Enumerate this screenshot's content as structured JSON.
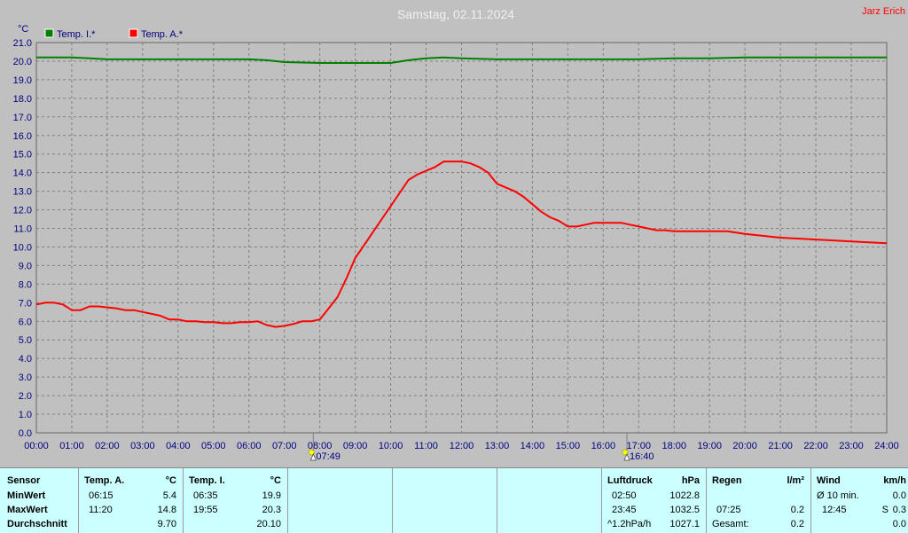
{
  "header": {
    "title": "Samstag, 02.11.2024",
    "author": "Jarz Erich",
    "y_unit": "°C"
  },
  "legend": [
    {
      "label": "Temp. I.*",
      "color": "#008000"
    },
    {
      "label": "Temp. A.*",
      "color": "#ff0000"
    }
  ],
  "sun_markers": [
    {
      "label": "07:49",
      "time": 7.817
    },
    {
      "label": "16:40",
      "time": 16.667
    }
  ],
  "chart_data": {
    "type": "line",
    "title": "Samstag, 02.11.2024",
    "ylabel": "°C",
    "ylim": [
      0,
      21
    ],
    "yticks": [
      "0.0",
      "1.0",
      "2.0",
      "3.0",
      "4.0",
      "5.0",
      "6.0",
      "7.0",
      "8.0",
      "9.0",
      "10.0",
      "11.0",
      "12.0",
      "13.0",
      "14.0",
      "15.0",
      "16.0",
      "17.0",
      "18.0",
      "19.0",
      "20.0",
      "21.0"
    ],
    "xlim": [
      0,
      24
    ],
    "xticks": [
      "00:00",
      "01:00",
      "02:00",
      "03:00",
      "04:00",
      "05:00",
      "06:00",
      "07:00",
      "08:00",
      "09:00",
      "10:00",
      "11:00",
      "12:00",
      "13:00",
      "14:00",
      "15:00",
      "16:00",
      "17:00",
      "18:00",
      "19:00",
      "20:00",
      "21:00",
      "22:00",
      "23:00",
      "24:00"
    ],
    "grid": true,
    "legend_position": "top-left",
    "series": [
      {
        "name": "Temp. I.*",
        "color": "#008000",
        "x": [
          0,
          1,
          1.5,
          2,
          3,
          4,
          5,
          6,
          6.5,
          7,
          8,
          9,
          10,
          10.5,
          11,
          11.5,
          12,
          13,
          14,
          15,
          16,
          17,
          18,
          19,
          20,
          21,
          22,
          23,
          24
        ],
        "y": [
          20.2,
          20.2,
          20.15,
          20.1,
          20.1,
          20.1,
          20.1,
          20.1,
          20.05,
          19.95,
          19.9,
          19.9,
          19.9,
          20.05,
          20.15,
          20.2,
          20.15,
          20.1,
          20.1,
          20.1,
          20.1,
          20.1,
          20.15,
          20.15,
          20.2,
          20.2,
          20.2,
          20.2,
          20.2
        ]
      },
      {
        "name": "Temp. A.*",
        "color": "#ff0000",
        "x": [
          0,
          0.25,
          0.5,
          0.75,
          1,
          1.25,
          1.5,
          1.75,
          2,
          2.25,
          2.5,
          2.75,
          3,
          3.25,
          3.5,
          3.75,
          4,
          4.25,
          4.5,
          4.75,
          5,
          5.25,
          5.5,
          5.75,
          6,
          6.25,
          6.5,
          6.75,
          7,
          7.25,
          7.5,
          7.75,
          8,
          8.25,
          8.5,
          8.75,
          9,
          9.25,
          9.5,
          9.75,
          10,
          10.25,
          10.5,
          10.75,
          11,
          11.25,
          11.5,
          11.75,
          12,
          12.25,
          12.5,
          12.75,
          13,
          13.25,
          13.5,
          13.75,
          14,
          14.25,
          14.5,
          14.75,
          15,
          15.25,
          15.5,
          15.75,
          16,
          16.25,
          16.5,
          16.75,
          17,
          17.25,
          17.5,
          17.75,
          18,
          18.5,
          19,
          19.5,
          20,
          20.5,
          21,
          21.5,
          22,
          22.5,
          23,
          23.5,
          24
        ],
        "y": [
          6.9,
          7.0,
          7.0,
          6.9,
          6.6,
          6.6,
          6.8,
          6.8,
          6.75,
          6.7,
          6.6,
          6.6,
          6.5,
          6.4,
          6.3,
          6.1,
          6.1,
          6.0,
          6.0,
          5.95,
          5.95,
          5.9,
          5.9,
          5.95,
          5.95,
          6.0,
          5.8,
          5.7,
          5.75,
          5.85,
          6.0,
          6.0,
          6.1,
          6.7,
          7.3,
          8.3,
          9.4,
          10.1,
          10.8,
          11.5,
          12.2,
          12.9,
          13.6,
          13.9,
          14.1,
          14.3,
          14.6,
          14.6,
          14.6,
          14.5,
          14.3,
          14.0,
          13.4,
          13.2,
          13.0,
          12.7,
          12.3,
          11.9,
          11.6,
          11.4,
          11.1,
          11.1,
          11.2,
          11.3,
          11.3,
          11.3,
          11.3,
          11.2,
          11.1,
          11.0,
          10.9,
          10.9,
          10.85,
          10.85,
          10.85,
          10.85,
          10.7,
          10.6,
          10.5,
          10.45,
          10.4,
          10.35,
          10.3,
          10.25,
          10.2
        ]
      }
    ]
  },
  "table": {
    "sensor": {
      "header": "Sensor",
      "rows": [
        "MinWert",
        "MaxWert",
        "Durchschnitt"
      ]
    },
    "temp_a": {
      "header": "Temp. A.",
      "unit": "°C",
      "min_time": "06:15",
      "min": "5.4",
      "max_time": "11:20",
      "max": "14.8",
      "avg": "9.70"
    },
    "temp_i": {
      "header": "Temp. I.",
      "unit": "°C",
      "min_time": "06:35",
      "min": "19.9",
      "max_time": "19:55",
      "max": "20.3",
      "avg": "20.10"
    },
    "pressure": {
      "header": "Luftdruck",
      "unit": "hPa",
      "min_time": "02:50",
      "min": "1022.8",
      "max_time": "23:45",
      "max": "1032.5",
      "trend": "^1.2hPa/h",
      "avg": "1027.1"
    },
    "rain": {
      "header": "Regen",
      "unit": "l/m²",
      "max_time": "07:25",
      "max": "0.2",
      "total_label": "Gesamt:",
      "total": "0.2"
    },
    "wind": {
      "header": "Wind",
      "unit": "km/h",
      "avg_label": "Ø 10 min.",
      "min": "0.0",
      "max_time": "12:45",
      "max_dir": "S",
      "max": "0.3",
      "avg": "0.0"
    }
  }
}
